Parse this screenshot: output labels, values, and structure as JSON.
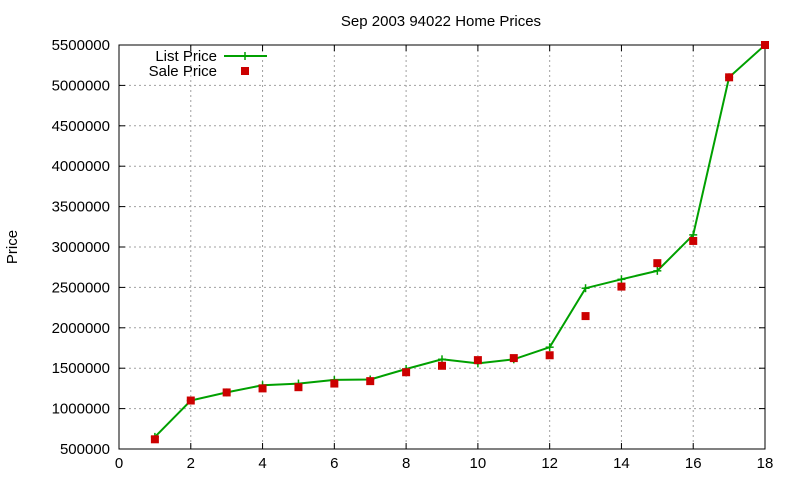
{
  "chart_data": {
    "type": "line",
    "title": "Sep 2003 94022 Home Prices",
    "xlabel": "",
    "ylabel": "Price",
    "xlim": [
      0,
      18
    ],
    "ylim": [
      500000,
      5500000
    ],
    "xticks": [
      0,
      2,
      4,
      6,
      8,
      10,
      12,
      14,
      16,
      18
    ],
    "xtick_labels": [
      "0",
      "2",
      "4",
      "6",
      "8",
      "10",
      "12",
      "14",
      "16",
      "18"
    ],
    "yticks": [
      500000,
      1000000,
      1500000,
      2000000,
      2500000,
      3000000,
      3500000,
      4000000,
      4500000,
      5000000,
      5500000
    ],
    "ytick_labels": [
      "500000",
      "1000000",
      "1500000",
      "2000000",
      "2500000",
      "3000000",
      "3500000",
      "4000000",
      "4500000",
      "5000000",
      "5500000"
    ],
    "grid": true,
    "legend_position": "top-left",
    "x": [
      1,
      2,
      3,
      4,
      5,
      6,
      7,
      8,
      9,
      10,
      11,
      12,
      13,
      14,
      15,
      16,
      17,
      18
    ],
    "series": [
      {
        "name": "List Price",
        "style": "line-plus",
        "color": "#00a000",
        "values": [
          650000,
          1100000,
          1200000,
          1290000,
          1310000,
          1355000,
          1360000,
          1490000,
          1610000,
          1560000,
          1610000,
          1760000,
          2490000,
          2600000,
          2705000,
          3150000,
          5100000,
          5500000
        ]
      },
      {
        "name": "Sale Price",
        "style": "square-points",
        "color": "#cc0000",
        "values": [
          620000,
          1100000,
          1200000,
          1250000,
          1265000,
          1310000,
          1340000,
          1450000,
          1530000,
          1600000,
          1625000,
          1660000,
          2145000,
          2510000,
          2800000,
          3075000,
          5100000,
          5500000
        ]
      }
    ]
  }
}
